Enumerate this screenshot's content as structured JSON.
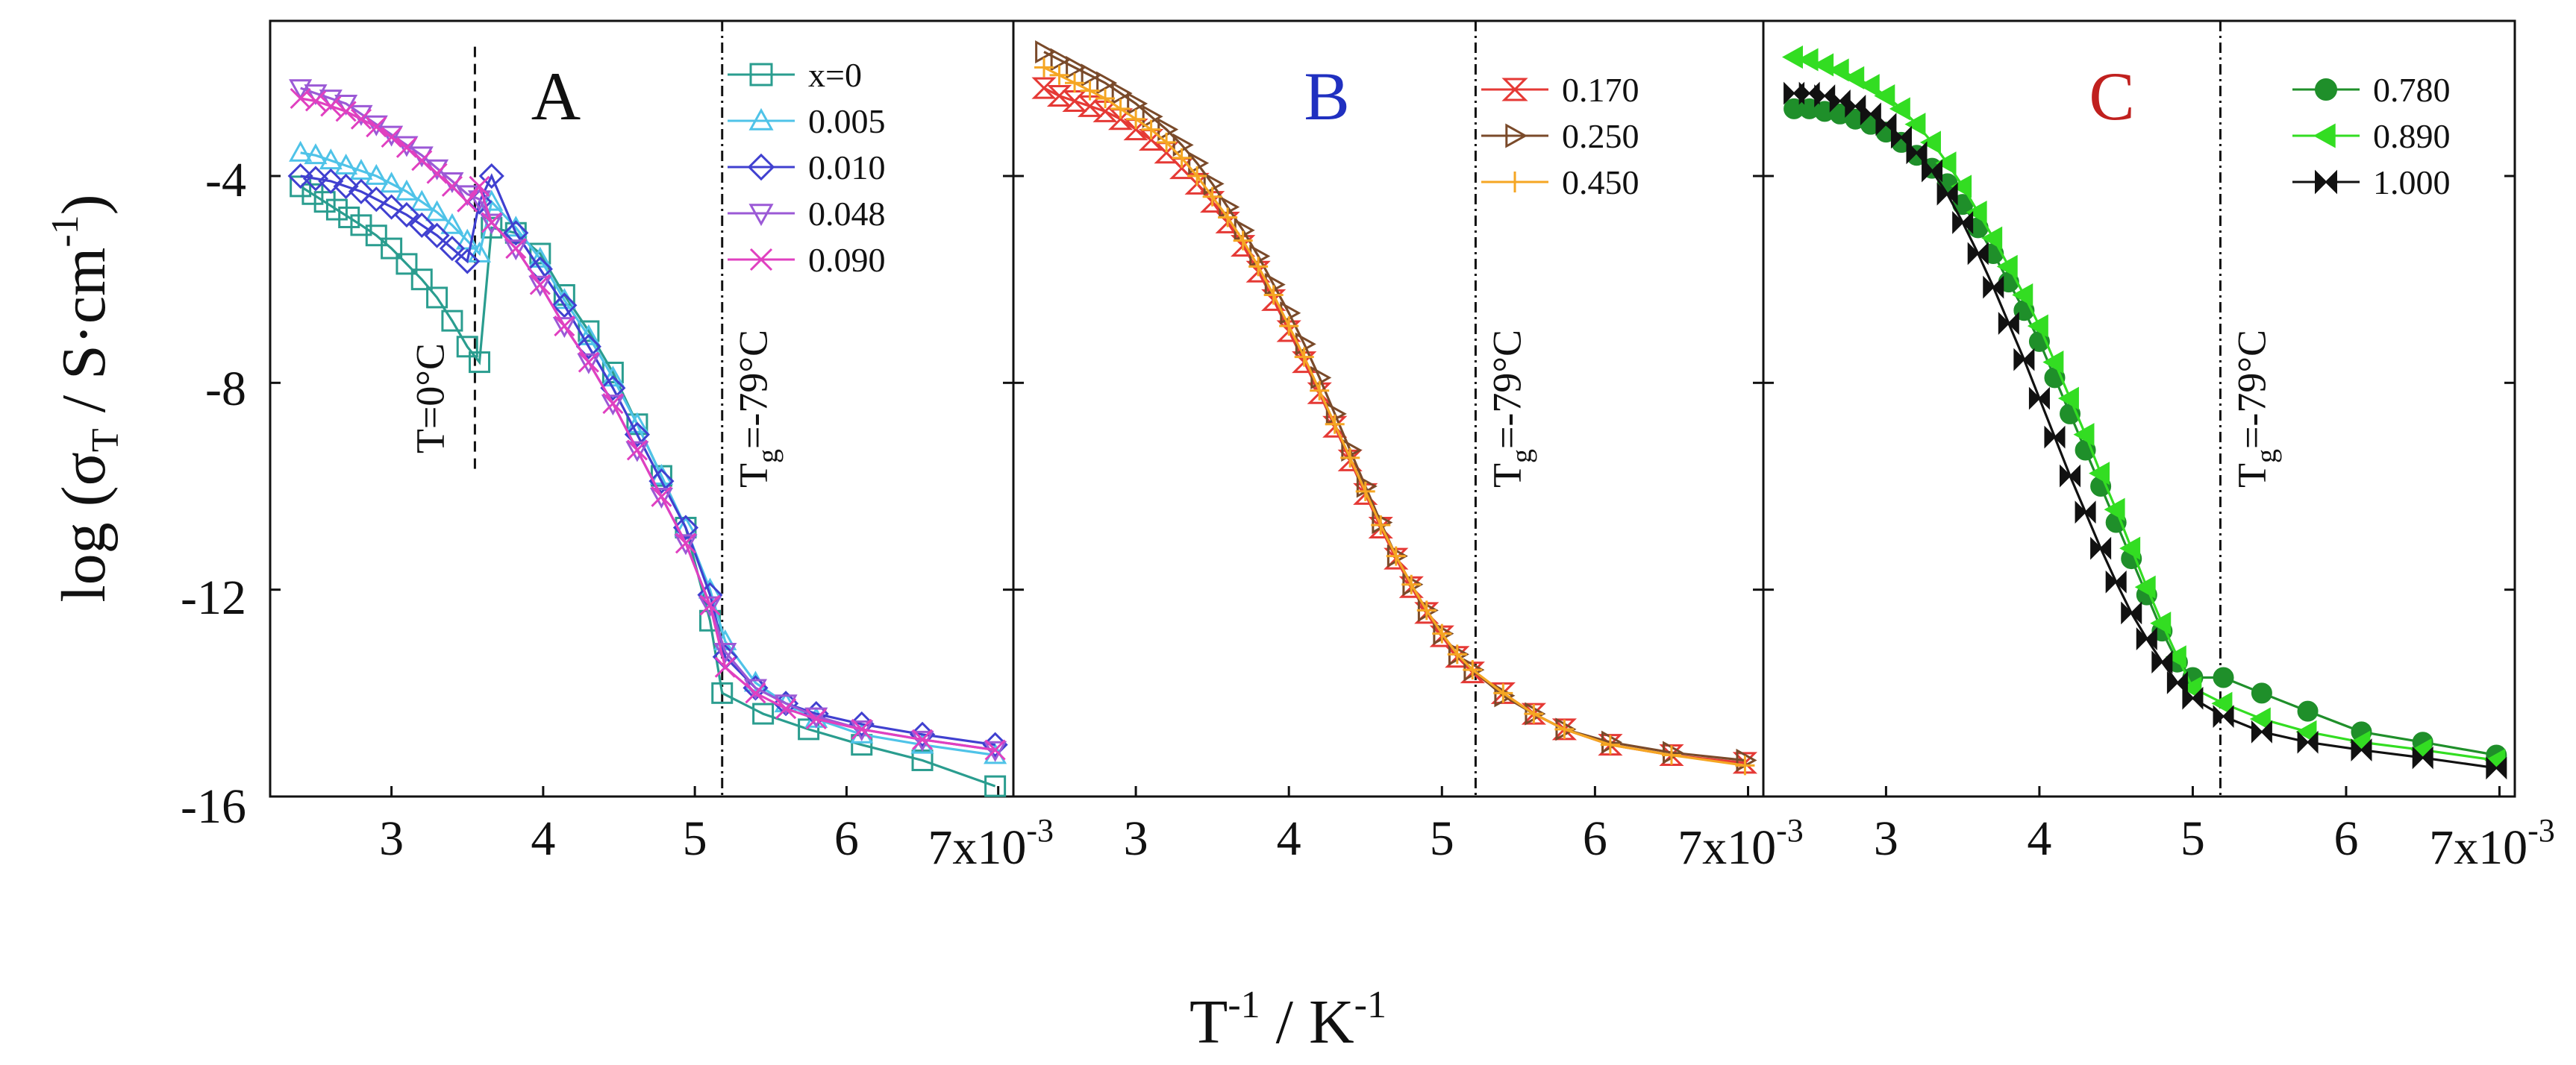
{
  "figure": {
    "ylabel_main": "log (σ",
    "ylabel_sub": "T",
    "ylabel_rest": " / S·cm",
    "ylabel_sup": "-1",
    "ylabel_close": ")",
    "xlabel_main": "T",
    "xlabel_sup1": "-1",
    "xlabel_mid": " / K",
    "xlabel_sup2": "-1",
    "x_multiplier_base": "7x10",
    "x_multiplier_exp": "-3",
    "ytick_labels": [
      "-4",
      "-8",
      "-12",
      "-16"
    ],
    "xtick_labels": [
      "3",
      "4",
      "5",
      "6"
    ]
  },
  "chart_data": [
    {
      "type": "line",
      "panel": "A",
      "title": "A",
      "title_color": "#111111",
      "xlabel": "T^-1 / K^-1",
      "ylabel": "log (σT / S·cm^-1)",
      "xlim": [
        0.0022,
        0.0071
      ],
      "ylim": [
        -16,
        -1.0
      ],
      "xscale": "x10^-3",
      "annotations": [
        {
          "text": "T=0°C",
          "x": 0.00355,
          "style": "dashed",
          "y_from": -9.7,
          "y_to": -1.5
        },
        {
          "text_main": "T",
          "text_sub": "g",
          "text_rest": "=-79°C",
          "x": 0.00518,
          "style": "dashdot"
        }
      ],
      "series": [
        {
          "name": "x=0",
          "color": "#2a9d8f",
          "marker": "square",
          "x": [
            0.0024,
            0.00248,
            0.00256,
            0.00264,
            0.00272,
            0.0028,
            0.0029,
            0.003,
            0.0031,
            0.0032,
            0.0033,
            0.0034,
            0.0035,
            0.00358,
            0.00366,
            0.00382,
            0.00398,
            0.00414,
            0.0043,
            0.00446,
            0.00462,
            0.00478,
            0.00494,
            0.0051,
            0.00518,
            0.00545,
            0.00575,
            0.0061,
            0.0065,
            0.00698
          ],
          "y": [
            -4.2,
            -4.35,
            -4.5,
            -4.65,
            -4.8,
            -4.95,
            -5.15,
            -5.4,
            -5.7,
            -6.0,
            -6.35,
            -6.8,
            -7.3,
            -7.6,
            -5.0,
            -5.1,
            -5.5,
            -6.3,
            -7.0,
            -7.8,
            -8.8,
            -9.8,
            -10.8,
            -12.6,
            -14.0,
            -14.4,
            -14.7,
            -15.0,
            -15.3,
            -15.8
          ]
        },
        {
          "name": "0.005",
          "color": "#4fc3e8",
          "marker": "triangle-up",
          "x": [
            0.0024,
            0.0025,
            0.0026,
            0.0027,
            0.0028,
            0.0029,
            0.003,
            0.0031,
            0.0032,
            0.0033,
            0.0034,
            0.0035,
            0.00358,
            0.00366,
            0.00382,
            0.00398,
            0.00414,
            0.0043,
            0.00446,
            0.00462,
            0.00478,
            0.00494,
            0.0051,
            0.0052,
            0.0054,
            0.0056,
            0.0058,
            0.0061,
            0.0065,
            0.00698
          ],
          "y": [
            -3.55,
            -3.6,
            -3.7,
            -3.8,
            -3.9,
            -4.0,
            -4.15,
            -4.3,
            -4.5,
            -4.7,
            -4.95,
            -5.25,
            -5.5,
            -4.5,
            -5.0,
            -5.6,
            -6.4,
            -7.1,
            -7.9,
            -8.8,
            -9.8,
            -10.8,
            -12.0,
            -13.0,
            -13.8,
            -14.2,
            -14.5,
            -14.8,
            -15.0,
            -15.2
          ]
        },
        {
          "name": "0.010",
          "color": "#4040d0",
          "marker": "diamond",
          "x": [
            0.0024,
            0.0025,
            0.0026,
            0.0027,
            0.0028,
            0.0029,
            0.003,
            0.0031,
            0.0032,
            0.0033,
            0.0034,
            0.0035,
            0.00358,
            0.00366,
            0.00382,
            0.00398,
            0.00414,
            0.0043,
            0.00446,
            0.00462,
            0.00478,
            0.00494,
            0.0051,
            0.0052,
            0.0054,
            0.0056,
            0.0058,
            0.0061,
            0.0065,
            0.00698
          ],
          "y": [
            -4.0,
            -4.05,
            -4.1,
            -4.2,
            -4.3,
            -4.45,
            -4.6,
            -4.75,
            -4.95,
            -5.15,
            -5.4,
            -5.65,
            -4.5,
            -4.0,
            -5.1,
            -5.8,
            -6.5,
            -7.3,
            -8.1,
            -9.0,
            -9.9,
            -10.8,
            -12.1,
            -13.3,
            -13.9,
            -14.2,
            -14.4,
            -14.6,
            -14.8,
            -15.0
          ]
        },
        {
          "name": "0.048",
          "color": "#9b59d6",
          "marker": "triangle-down",
          "x": [
            0.0024,
            0.0025,
            0.0026,
            0.0027,
            0.0028,
            0.0029,
            0.003,
            0.0031,
            0.0032,
            0.0033,
            0.0034,
            0.0035,
            0.00358,
            0.00366,
            0.00382,
            0.00398,
            0.00414,
            0.0043,
            0.00446,
            0.00462,
            0.00478,
            0.00494,
            0.0051,
            0.0052,
            0.0054,
            0.0056,
            0.0058,
            0.0061,
            0.0065,
            0.00698
          ],
          "y": [
            -2.3,
            -2.4,
            -2.5,
            -2.6,
            -2.8,
            -3.0,
            -3.2,
            -3.4,
            -3.6,
            -3.85,
            -4.1,
            -4.35,
            -4.45,
            -4.9,
            -5.4,
            -6.1,
            -6.9,
            -7.6,
            -8.4,
            -9.3,
            -10.2,
            -11.1,
            -12.3,
            -13.2,
            -13.9,
            -14.2,
            -14.45,
            -14.7,
            -14.9,
            -15.1
          ]
        },
        {
          "name": "0.090",
          "color": "#e040c0",
          "marker": "x",
          "x": [
            0.0024,
            0.0025,
            0.0026,
            0.0027,
            0.0028,
            0.0029,
            0.003,
            0.0031,
            0.0032,
            0.0033,
            0.0034,
            0.0035,
            0.00358,
            0.00366,
            0.00382,
            0.00398,
            0.00414,
            0.0043,
            0.00446,
            0.00462,
            0.00478,
            0.00494,
            0.0051,
            0.0052,
            0.0054,
            0.0056,
            0.0058,
            0.0061,
            0.0065,
            0.00698
          ],
          "y": [
            -2.5,
            -2.55,
            -2.65,
            -2.75,
            -2.9,
            -3.05,
            -3.25,
            -3.45,
            -3.7,
            -3.95,
            -4.2,
            -4.5,
            -4.2,
            -4.9,
            -5.4,
            -6.1,
            -6.9,
            -7.6,
            -8.4,
            -9.3,
            -10.2,
            -11.1,
            -12.3,
            -13.5,
            -14.0,
            -14.3,
            -14.5,
            -14.7,
            -14.9,
            -15.1
          ]
        }
      ]
    },
    {
      "type": "line",
      "panel": "B",
      "title": "B",
      "title_color": "#2030c0",
      "xlabel": "T^-1 / K^-1",
      "ylabel": "log (σT / S·cm^-1)",
      "xlim": [
        0.0022,
        0.0071
      ],
      "ylim": [
        -16,
        -1.0
      ],
      "xscale": "x10^-3",
      "annotations": [
        {
          "text_main": "T",
          "text_sub": "g",
          "text_rest": "=-79°C",
          "x": 0.00522,
          "style": "dashdot"
        }
      ],
      "series": [
        {
          "name": "0.170",
          "color": "#e53935",
          "marker": "hourglass",
          "x": [
            0.0024,
            0.0025,
            0.0026,
            0.0027,
            0.0028,
            0.0029,
            0.003,
            0.0031,
            0.0032,
            0.0033,
            0.0034,
            0.0035,
            0.0036,
            0.0037,
            0.0038,
            0.0039,
            0.004,
            0.0041,
            0.0042,
            0.0043,
            0.0044,
            0.0045,
            0.0046,
            0.0047,
            0.0048,
            0.0049,
            0.005,
            0.0051,
            0.0052,
            0.0054,
            0.0056,
            0.0058,
            0.0061,
            0.0065,
            0.00698
          ],
          "y": [
            -2.3,
            -2.45,
            -2.55,
            -2.65,
            -2.75,
            -2.9,
            -3.1,
            -3.3,
            -3.55,
            -3.85,
            -4.15,
            -4.5,
            -4.9,
            -5.35,
            -5.85,
            -6.4,
            -7.0,
            -7.6,
            -8.2,
            -8.85,
            -9.5,
            -10.15,
            -10.8,
            -11.4,
            -11.95,
            -12.45,
            -12.9,
            -13.3,
            -13.6,
            -14.0,
            -14.4,
            -14.7,
            -15.0,
            -15.2,
            -15.35
          ]
        },
        {
          "name": "0.250",
          "color": "#7a4a2a",
          "marker": "triangle-right",
          "x": [
            0.0024,
            0.0025,
            0.0026,
            0.0027,
            0.0028,
            0.0029,
            0.003,
            0.0031,
            0.0032,
            0.0033,
            0.0034,
            0.0035,
            0.0036,
            0.0037,
            0.0038,
            0.0039,
            0.004,
            0.0041,
            0.0042,
            0.0043,
            0.0044,
            0.0045,
            0.0046,
            0.0047,
            0.0048,
            0.0049,
            0.005,
            0.0051,
            0.0052,
            0.0054,
            0.0056,
            0.0058,
            0.0061,
            0.0065,
            0.00698
          ],
          "y": [
            -1.6,
            -1.75,
            -1.9,
            -2.05,
            -2.2,
            -2.4,
            -2.6,
            -2.85,
            -3.1,
            -3.4,
            -3.75,
            -4.15,
            -4.6,
            -5.05,
            -5.55,
            -6.1,
            -6.65,
            -7.25,
            -7.9,
            -8.6,
            -9.3,
            -10.0,
            -10.7,
            -11.35,
            -11.9,
            -12.4,
            -12.85,
            -13.25,
            -13.55,
            -14.05,
            -14.4,
            -14.7,
            -14.95,
            -15.15,
            -15.3
          ]
        },
        {
          "name": "0.450",
          "color": "#f5a623",
          "marker": "plus",
          "x": [
            0.0024,
            0.0025,
            0.0026,
            0.0027,
            0.0028,
            0.0029,
            0.003,
            0.0031,
            0.0032,
            0.0033,
            0.0034,
            0.0035,
            0.0036,
            0.0037,
            0.0038,
            0.0039,
            0.004,
            0.0041,
            0.0042,
            0.0043,
            0.0044,
            0.0045,
            0.0046,
            0.0047,
            0.0048,
            0.0049,
            0.005,
            0.0051,
            0.0052,
            0.0054,
            0.0056,
            0.0058,
            0.0061,
            0.0065,
            0.00698
          ],
          "y": [
            -1.9,
            -2.05,
            -2.2,
            -2.35,
            -2.5,
            -2.7,
            -2.9,
            -3.1,
            -3.35,
            -3.65,
            -4.0,
            -4.4,
            -4.8,
            -5.25,
            -5.75,
            -6.3,
            -6.9,
            -7.5,
            -8.15,
            -8.8,
            -9.45,
            -10.1,
            -10.75,
            -11.35,
            -11.9,
            -12.4,
            -12.85,
            -13.25,
            -13.55,
            -14.0,
            -14.4,
            -14.7,
            -15.0,
            -15.2,
            -15.4
          ]
        }
      ]
    },
    {
      "type": "line",
      "panel": "C",
      "title": "C",
      "title_color": "#c0201e",
      "xlabel": "T^-1 / K^-1",
      "ylabel": "log (σT / S·cm^-1)",
      "xlim": [
        0.0022,
        0.0071
      ],
      "ylim": [
        -16,
        -1.0
      ],
      "xscale": "x10^-3",
      "annotations": [
        {
          "text_main": "T",
          "text_sub": "g",
          "text_rest": "=-79°C",
          "x": 0.00518,
          "style": "dashdot"
        }
      ],
      "series": [
        {
          "name": "0.780",
          "color": "#1f8f2a",
          "marker": "circle",
          "x": [
            0.0024,
            0.0025,
            0.0026,
            0.0027,
            0.0028,
            0.0029,
            0.003,
            0.0031,
            0.0032,
            0.0033,
            0.0034,
            0.0035,
            0.0036,
            0.0037,
            0.0038,
            0.0039,
            0.004,
            0.0041,
            0.0042,
            0.0043,
            0.0044,
            0.0045,
            0.0046,
            0.0047,
            0.0048,
            0.0049,
            0.005,
            0.0052,
            0.00545,
            0.00575,
            0.0061,
            0.0065,
            0.00698
          ],
          "y": [
            -2.7,
            -2.7,
            -2.75,
            -2.8,
            -2.9,
            -3.0,
            -3.15,
            -3.35,
            -3.6,
            -3.85,
            -4.15,
            -4.55,
            -5.0,
            -5.5,
            -6.05,
            -6.6,
            -7.2,
            -7.9,
            -8.6,
            -9.3,
            -10.0,
            -10.7,
            -11.4,
            -12.1,
            -12.8,
            -13.4,
            -13.7,
            -13.7,
            -14.0,
            -14.35,
            -14.75,
            -14.95,
            -15.2
          ]
        },
        {
          "name": "0.890",
          "color": "#33dd22",
          "marker": "triangle-left",
          "x": [
            0.0024,
            0.0025,
            0.0026,
            0.0027,
            0.0028,
            0.0029,
            0.003,
            0.0031,
            0.0032,
            0.0033,
            0.0034,
            0.0035,
            0.0036,
            0.0037,
            0.0038,
            0.0039,
            0.004,
            0.0041,
            0.0042,
            0.0043,
            0.0044,
            0.0045,
            0.0046,
            0.0047,
            0.0048,
            0.0049,
            0.005,
            0.0052,
            0.00545,
            0.00575,
            0.0061,
            0.0065,
            0.00698
          ],
          "y": [
            -1.7,
            -1.75,
            -1.85,
            -1.95,
            -2.1,
            -2.25,
            -2.45,
            -2.7,
            -3.0,
            -3.35,
            -3.75,
            -4.2,
            -4.7,
            -5.2,
            -5.75,
            -6.3,
            -6.9,
            -7.6,
            -8.3,
            -9.0,
            -9.75,
            -10.45,
            -11.2,
            -11.95,
            -12.65,
            -13.3,
            -13.9,
            -14.2,
            -14.5,
            -14.75,
            -14.95,
            -15.1,
            -15.3
          ]
        },
        {
          "name": "1.000",
          "color": "#111111",
          "marker": "bowtie",
          "x": [
            0.0024,
            0.0025,
            0.0026,
            0.0027,
            0.0028,
            0.0029,
            0.003,
            0.0031,
            0.0032,
            0.0033,
            0.0034,
            0.0035,
            0.0036,
            0.0037,
            0.0038,
            0.0039,
            0.004,
            0.0041,
            0.0042,
            0.0043,
            0.0044,
            0.0045,
            0.0046,
            0.0047,
            0.0048,
            0.0049,
            0.005,
            0.0052,
            0.00545,
            0.00575,
            0.0061,
            0.0065,
            0.00698
          ],
          "y": [
            -2.4,
            -2.4,
            -2.45,
            -2.55,
            -2.65,
            -2.8,
            -3.0,
            -3.25,
            -3.55,
            -3.9,
            -4.35,
            -4.9,
            -5.5,
            -6.15,
            -6.85,
            -7.55,
            -8.3,
            -9.05,
            -9.8,
            -10.5,
            -11.2,
            -11.85,
            -12.45,
            -12.95,
            -13.4,
            -13.8,
            -14.1,
            -14.45,
            -14.75,
            -14.95,
            -15.1,
            -15.25,
            -15.45
          ]
        }
      ]
    }
  ]
}
